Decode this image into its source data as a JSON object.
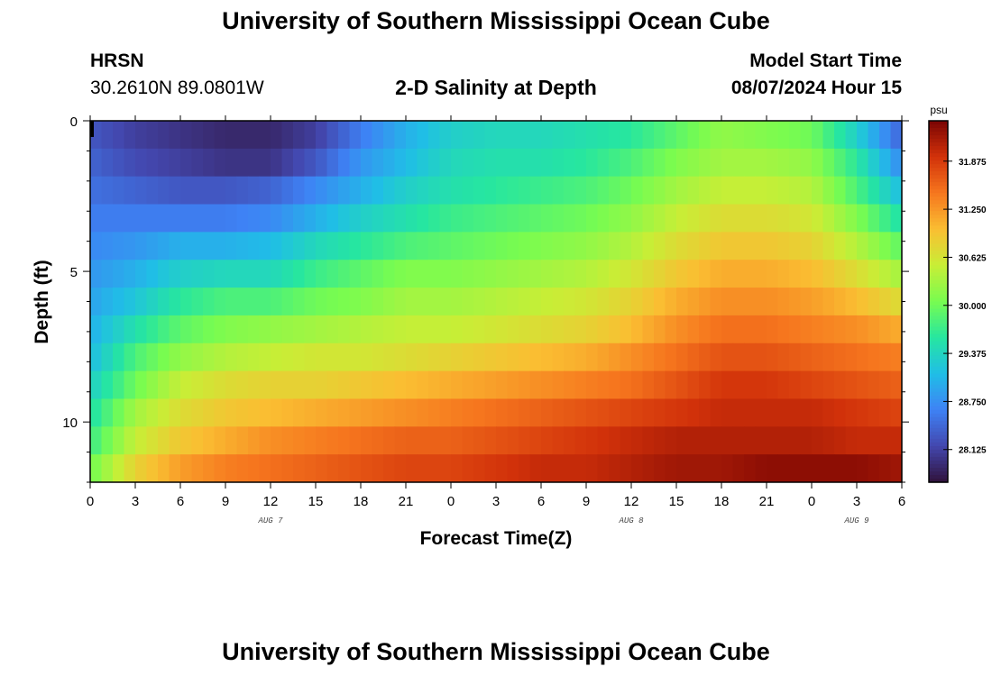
{
  "header": {
    "title": "University of Southern Mississippi Ocean Cube",
    "station_code": "HRSN",
    "station_coords": "30.2610N  89.0801W",
    "chart_heading": "2-D Salinity at Depth",
    "model_label": "Model Start Time",
    "model_time": "08/07/2024 Hour 15"
  },
  "footer": {
    "title": "University of Southern Mississippi Ocean Cube"
  },
  "chart_data": {
    "type": "heatmap",
    "title": "2-D Salinity at Depth",
    "xlabel": "Forecast Time(Z)",
    "ylabel": "Depth (ft)",
    "x_ticks": [
      "0",
      "3",
      "6",
      "9",
      "12",
      "15",
      "18",
      "21",
      "0",
      "3",
      "6",
      "9",
      "12",
      "15",
      "18",
      "21",
      "0",
      "3",
      "6"
    ],
    "date_labels": [
      {
        "label": "AUG 7",
        "hour": 12
      },
      {
        "label": "AUG 8",
        "hour": 36
      },
      {
        "label": "AUG 9",
        "hour": 51
      }
    ],
    "xlim_hours": [
      0,
      54
    ],
    "y_ticks": [
      0,
      5,
      10
    ],
    "ylim_ft": [
      0,
      12
    ],
    "colorbar": {
      "unit": "psu",
      "ticks": [
        28.125,
        28.75,
        29.375,
        30.0,
        30.625,
        31.25,
        31.875
      ],
      "tick_labels": [
        "28.125",
        "28.750",
        "29.375",
        "30.000",
        "30.625",
        "31.250",
        "31.875"
      ],
      "range": [
        27.7,
        32.4
      ],
      "colormap": "turbo"
    },
    "time_hours": [
      0,
      3,
      6,
      9,
      12,
      15,
      18,
      21,
      24,
      27,
      30,
      33,
      36,
      39,
      42,
      45,
      48,
      51,
      54
    ],
    "depth_ft": [
      0,
      1,
      2,
      3,
      4,
      5,
      6,
      7,
      8,
      9,
      10,
      11,
      12
    ],
    "salinity_psu": [
      [
        28.3,
        28.1,
        28.0,
        27.9,
        27.9,
        28.1,
        28.6,
        29.0,
        29.3,
        29.4,
        29.4,
        29.5,
        29.6,
        29.9,
        30.2,
        30.1,
        30.0,
        29.3,
        28.4
      ],
      [
        28.4,
        28.2,
        28.1,
        28.0,
        28.0,
        28.3,
        28.8,
        29.1,
        29.4,
        29.5,
        29.5,
        29.6,
        29.8,
        30.1,
        30.3,
        30.3,
        30.2,
        29.6,
        28.7
      ],
      [
        28.5,
        28.4,
        28.3,
        28.3,
        28.4,
        28.7,
        29.0,
        29.3,
        29.5,
        29.6,
        29.7,
        29.8,
        30.0,
        30.3,
        30.5,
        30.5,
        30.4,
        29.8,
        29.1
      ],
      [
        28.6,
        28.6,
        28.6,
        28.6,
        28.7,
        29.0,
        29.3,
        29.5,
        29.7,
        29.8,
        29.9,
        30.0,
        30.2,
        30.5,
        30.7,
        30.7,
        30.6,
        30.1,
        29.5
      ],
      [
        28.7,
        28.8,
        29.0,
        29.0,
        29.1,
        29.4,
        29.6,
        29.8,
        29.9,
        30.0,
        30.1,
        30.2,
        30.4,
        30.7,
        30.9,
        30.9,
        30.8,
        30.4,
        29.9
      ],
      [
        28.8,
        29.0,
        29.3,
        29.4,
        29.4,
        29.7,
        29.9,
        30.1,
        30.1,
        30.2,
        30.3,
        30.4,
        30.6,
        30.9,
        31.1,
        31.1,
        31.0,
        30.7,
        30.3
      ],
      [
        28.9,
        29.2,
        29.6,
        29.8,
        29.8,
        30.0,
        30.1,
        30.3,
        30.3,
        30.4,
        30.5,
        30.6,
        30.8,
        31.1,
        31.3,
        31.3,
        31.2,
        31.0,
        30.7
      ],
      [
        29.0,
        29.5,
        29.9,
        30.1,
        30.2,
        30.3,
        30.4,
        30.5,
        30.5,
        30.6,
        30.7,
        30.8,
        31.0,
        31.3,
        31.5,
        31.5,
        31.4,
        31.3,
        31.1
      ],
      [
        29.1,
        29.8,
        30.2,
        30.4,
        30.5,
        30.6,
        30.6,
        30.7,
        30.8,
        30.9,
        31.0,
        31.1,
        31.3,
        31.5,
        31.7,
        31.7,
        31.6,
        31.5,
        31.4
      ],
      [
        29.3,
        30.0,
        30.5,
        30.7,
        30.8,
        30.8,
        30.9,
        31.0,
        31.1,
        31.2,
        31.3,
        31.4,
        31.5,
        31.7,
        31.9,
        31.9,
        31.8,
        31.7,
        31.6
      ],
      [
        29.5,
        30.3,
        30.7,
        30.9,
        31.0,
        31.1,
        31.2,
        31.3,
        31.4,
        31.5,
        31.6,
        31.7,
        31.8,
        31.9,
        32.0,
        32.0,
        32.0,
        31.9,
        31.8
      ],
      [
        29.7,
        30.5,
        30.9,
        31.1,
        31.3,
        31.4,
        31.5,
        31.6,
        31.6,
        31.7,
        31.8,
        31.9,
        32.0,
        32.1,
        32.1,
        32.1,
        32.1,
        32.0,
        32.0
      ],
      [
        30.0,
        30.8,
        31.2,
        31.4,
        31.5,
        31.6,
        31.7,
        31.8,
        31.8,
        31.9,
        32.0,
        32.0,
        32.1,
        32.2,
        32.2,
        32.3,
        32.3,
        32.3,
        32.2
      ]
    ]
  }
}
